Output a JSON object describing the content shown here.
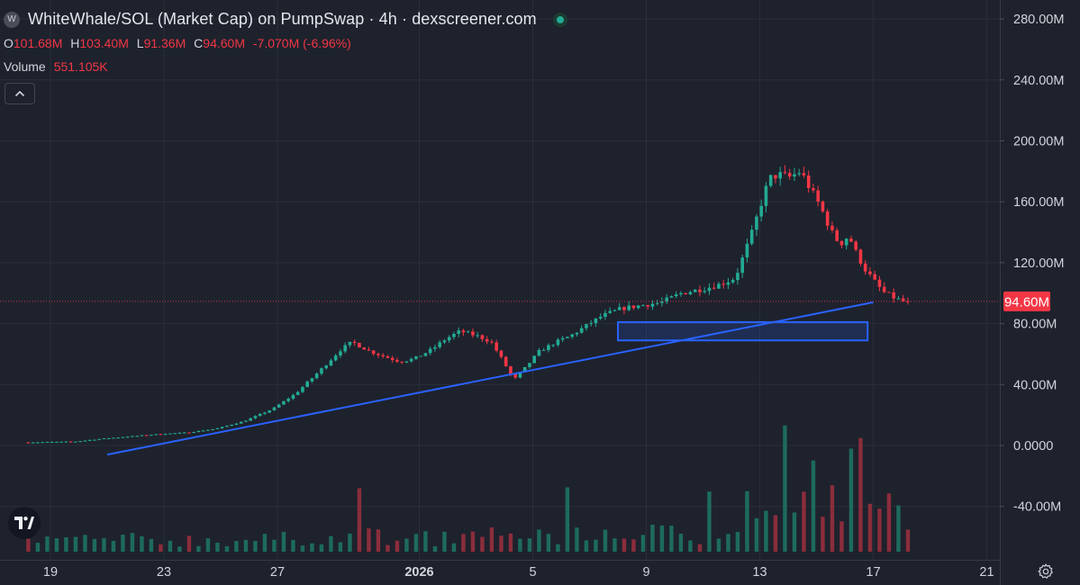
{
  "header": {
    "logo_letter": "W",
    "title": "WhiteWhale/SOL (Market Cap) on PumpSwap · 4h · dexscreener.com",
    "ohlc": [
      {
        "key": "O",
        "value": "101.68M"
      },
      {
        "key": "H",
        "value": "103.40M"
      },
      {
        "key": "L",
        "value": "91.36M"
      },
      {
        "key": "C",
        "value": "94.60M"
      },
      {
        "key": "",
        "value": "-7.070M (-6.96%)"
      }
    ],
    "volume_label": "Volume",
    "volume_value": "551.105K"
  },
  "colors": {
    "background": "#1e222d",
    "up": "#22ab94",
    "down": "#f23645",
    "volume_up": "#1d6b5e",
    "volume_down": "#8b2d3c",
    "drawing": "#2962ff",
    "price_badge": "#f23645"
  },
  "icons": {
    "collapse": "chevron-up-icon",
    "brand": "tradingview-logo-icon",
    "settings": "gear-icon",
    "status": "green-status-dot-icon"
  },
  "chart_data": {
    "type": "candlestick",
    "interval": "4h",
    "y_axis_ticks": [
      "280.00M",
      "240.00M",
      "200.00M",
      "160.00M",
      "120.00M",
      "80.00M",
      "40.00M",
      "0.0000",
      "-40.00M"
    ],
    "y_axis_values": [
      280,
      240,
      200,
      160,
      120,
      80,
      40,
      0,
      -40
    ],
    "y_unit": "M",
    "ylim": [
      -70,
      292
    ],
    "x_axis_ticks": [
      "19",
      "23",
      "27",
      "2026",
      "5",
      "9",
      "13",
      "17",
      "21"
    ],
    "x_axis_bold": [
      false,
      false,
      false,
      true,
      false,
      false,
      false,
      false,
      false
    ],
    "xlim": [
      18.22,
      49.5
    ],
    "x_unit": "days from Dec 1 (2026 tick = Jan 1)",
    "last_price_label": "94.60M",
    "last_price": 94.6,
    "price_anchors": [
      [
        18.2,
        2.0
      ],
      [
        20.0,
        2.5
      ],
      [
        21.0,
        4.5
      ],
      [
        22.0,
        6.0
      ],
      [
        23.0,
        7.5
      ],
      [
        24.0,
        8.5
      ],
      [
        25.0,
        11.0
      ],
      [
        26.0,
        16.0
      ],
      [
        27.0,
        24.0
      ],
      [
        27.8,
        34.0
      ],
      [
        28.6,
        48.0
      ],
      [
        29.4,
        63.0
      ],
      [
        29.8,
        68.0
      ],
      [
        30.4,
        62.0
      ],
      [
        31.0,
        58.0
      ],
      [
        31.5,
        55.0
      ],
      [
        32.0,
        57.0
      ],
      [
        32.6,
        63.0
      ],
      [
        33.1,
        70.0
      ],
      [
        33.6,
        75.0
      ],
      [
        34.2,
        72.0
      ],
      [
        34.7,
        68.0
      ],
      [
        35.1,
        56.0
      ],
      [
        35.5,
        43.0
      ],
      [
        35.9,
        51.0
      ],
      [
        36.4,
        62.0
      ],
      [
        37.0,
        68.0
      ],
      [
        37.5,
        72.0
      ],
      [
        38.0,
        78.0
      ],
      [
        38.6,
        85.0
      ],
      [
        39.3,
        90.0
      ],
      [
        40.0,
        92.0
      ],
      [
        40.7,
        94.0
      ],
      [
        41.4,
        100.0
      ],
      [
        42.2,
        103.0
      ],
      [
        42.8,
        106.0
      ],
      [
        43.3,
        110.0
      ],
      [
        43.6,
        125.0
      ],
      [
        43.9,
        140.0
      ],
      [
        44.2,
        158.0
      ],
      [
        44.5,
        175.0
      ],
      [
        44.8,
        178.0
      ],
      [
        45.2,
        176.0
      ],
      [
        45.6,
        180.0
      ],
      [
        45.9,
        170.0
      ],
      [
        46.3,
        157.0
      ],
      [
        46.7,
        140.0
      ],
      [
        47.0,
        132.0
      ],
      [
        47.3,
        138.0
      ],
      [
        47.6,
        125.0
      ],
      [
        47.9,
        115.0
      ],
      [
        48.2,
        108.0
      ],
      [
        48.5,
        101.0
      ],
      [
        48.9,
        97.0
      ],
      [
        49.2,
        94.6
      ]
    ],
    "volume_peaks": [
      {
        "x": 44.75,
        "value": 92,
        "bar_is_up": true
      },
      {
        "x": 45.9,
        "value": 65,
        "bar_is_up": true
      },
      {
        "x": 47.25,
        "value": 78,
        "bar_is_up": true
      },
      {
        "x": 47.68,
        "value": 81,
        "bar_is_up": false
      },
      {
        "x": 30.0,
        "value": 48,
        "bar_is_up": false
      },
      {
        "x": 37.2,
        "value": 47,
        "bar_is_up": true
      },
      {
        "x": 42.3,
        "value": 45,
        "bar_is_up": true
      },
      {
        "x": 46.4,
        "value": 48,
        "bar_is_up": false
      }
    ],
    "trendline": {
      "x1": 21.0,
      "y1": -6,
      "x2": 48.0,
      "y2": 94
    },
    "zone": {
      "x1": 39.0,
      "x2": 47.8,
      "y_top": 81,
      "y_bottom": 69
    }
  }
}
